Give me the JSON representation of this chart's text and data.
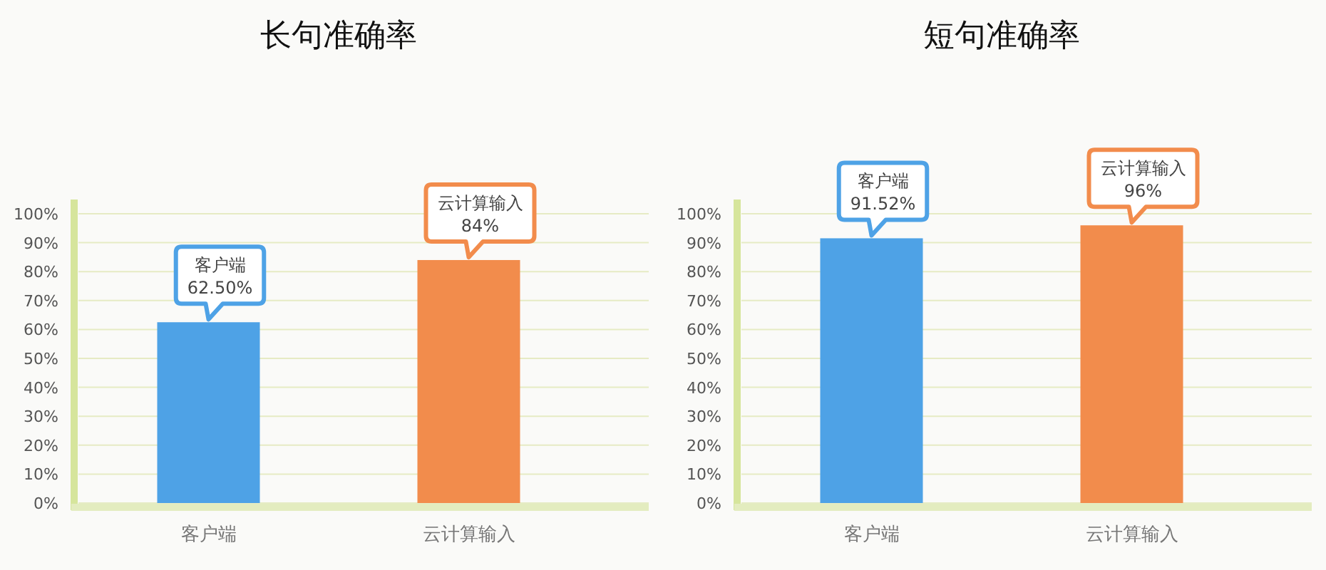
{
  "chart_data": [
    {
      "type": "bar",
      "title": "长句准确率",
      "categories": [
        "客户端",
        "云计算输入"
      ],
      "values": [
        62.5,
        84
      ],
      "colors": [
        "#4ea2e6",
        "#f28c4c"
      ],
      "value_labels": [
        "62.50%",
        "84%"
      ],
      "ylim": [
        0,
        100
      ],
      "yticks": [
        {
          "value": 0,
          "label": "0%"
        },
        {
          "value": 10,
          "label": "10%"
        },
        {
          "value": 20,
          "label": "20%"
        },
        {
          "value": 30,
          "label": "30%"
        },
        {
          "value": 40,
          "label": "40%"
        },
        {
          "value": 50,
          "label": "50%"
        },
        {
          "value": 60,
          "label": "60%"
        },
        {
          "value": 70,
          "label": "70%"
        },
        {
          "value": 80,
          "label": "80%"
        },
        {
          "value": 90,
          "label": "90%"
        },
        {
          "value": 100,
          "label": "100%"
        }
      ],
      "grid": "y"
    },
    {
      "type": "bar",
      "title": "短句准确率",
      "categories": [
        "客户端",
        "云计算输入"
      ],
      "values": [
        91.52,
        96
      ],
      "colors": [
        "#4ea2e6",
        "#f28c4c"
      ],
      "value_labels": [
        "91.52%",
        "96%"
      ],
      "ylim": [
        0,
        100
      ],
      "yticks": [
        {
          "value": 0,
          "label": "0%"
        },
        {
          "value": 10,
          "label": "10%"
        },
        {
          "value": 20,
          "label": "20%"
        },
        {
          "value": 30,
          "label": "30%"
        },
        {
          "value": 40,
          "label": "40%"
        },
        {
          "value": 50,
          "label": "50%"
        },
        {
          "value": 60,
          "label": "60%"
        },
        {
          "value": 70,
          "label": "70%"
        },
        {
          "value": 80,
          "label": "80%"
        },
        {
          "value": 90,
          "label": "90%"
        },
        {
          "value": 100,
          "label": "100%"
        }
      ],
      "grid": "y"
    }
  ]
}
